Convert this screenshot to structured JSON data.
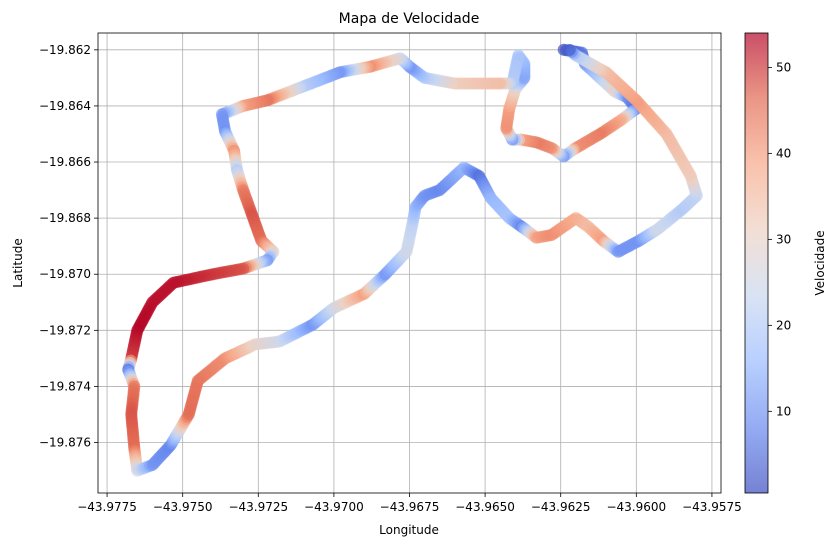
{
  "chart_data": {
    "type": "scatter",
    "title": "Mapa de Velocidade",
    "xlabel": "Longitude",
    "ylabel": "Latitude",
    "xlim": [
      -43.9778,
      -43.9572
    ],
    "ylim": [
      -19.8778,
      -19.8614
    ],
    "grid": true,
    "x_ticks": [
      -43.9775,
      -43.975,
      -43.9725,
      -43.97,
      -43.9675,
      -43.965,
      -43.9625,
      -43.96,
      -43.9575
    ],
    "x_tick_labels": [
      "−43.9775",
      "−43.9750",
      "−43.9725",
      "−43.9700",
      "−43.9675",
      "−43.9650",
      "−43.9625",
      "−43.9600",
      "−43.9575"
    ],
    "y_ticks": [
      -19.862,
      -19.864,
      -19.866,
      -19.868,
      -19.87,
      -19.872,
      -19.874,
      -19.876
    ],
    "y_tick_labels": [
      "−19.862",
      "−19.864",
      "−19.866",
      "−19.868",
      "−19.870",
      "−19.872",
      "−19.874",
      "−19.876"
    ],
    "colorbar": {
      "label": "Velocidade",
      "range": [
        0.5,
        54
      ],
      "ticks": [
        10,
        20,
        30,
        40,
        50
      ],
      "tick_labels": [
        "10",
        "20",
        "30",
        "40",
        "50"
      ],
      "colormap": "coolwarm",
      "colormap_stops": [
        "#3b4cc0",
        "#6788ee",
        "#9abbff",
        "#c9d7f0",
        "#edd1c2",
        "#f7a889",
        "#e26952",
        "#b40426"
      ]
    },
    "route": [
      [
        -43.9624,
        -19.862,
        1
      ],
      [
        -43.9618,
        -19.8621,
        5
      ],
      [
        -43.9617,
        -19.8625,
        10
      ],
      [
        -43.9612,
        -19.863,
        20
      ],
      [
        -43.9607,
        -19.8635,
        30
      ],
      [
        -43.9603,
        -19.8637,
        10
      ],
      [
        -43.96,
        -19.8641,
        5
      ],
      [
        -43.9605,
        -19.8645,
        38
      ],
      [
        -43.9612,
        -19.865,
        44
      ],
      [
        -43.962,
        -19.8655,
        42
      ],
      [
        -43.9624,
        -19.8658,
        10
      ],
      [
        -43.9628,
        -19.8655,
        42
      ],
      [
        -43.9633,
        -19.8653,
        44
      ],
      [
        -43.9638,
        -19.8652,
        40
      ],
      [
        -43.9641,
        -19.8652,
        10
      ],
      [
        -43.9643,
        -19.8648,
        42
      ],
      [
        -43.9642,
        -19.8641,
        40
      ],
      [
        -43.964,
        -19.8634,
        30
      ],
      [
        -43.9637,
        -19.863,
        12
      ],
      [
        -43.9637,
        -19.8625,
        15
      ],
      [
        -43.9639,
        -19.8622,
        18
      ],
      [
        -43.9641,
        -19.8632,
        20
      ],
      [
        -43.9645,
        -19.8632,
        35
      ],
      [
        -43.966,
        -19.8632,
        32
      ],
      [
        -43.967,
        -19.863,
        20
      ],
      [
        -43.9675,
        -19.8626,
        10
      ],
      [
        -43.9678,
        -19.8623,
        25
      ],
      [
        -43.9688,
        -19.8626,
        42
      ],
      [
        -43.9698,
        -19.8628,
        10
      ],
      [
        -43.971,
        -19.8633,
        20
      ],
      [
        -43.9722,
        -19.8638,
        45
      ],
      [
        -43.973,
        -19.864,
        40
      ],
      [
        -43.9737,
        -19.8643,
        10
      ],
      [
        -43.9736,
        -19.8649,
        10
      ],
      [
        -43.9733,
        -19.8656,
        42
      ],
      [
        -43.9732,
        -19.8663,
        20
      ],
      [
        -43.973,
        -19.867,
        44
      ],
      [
        -43.9727,
        -19.8679,
        48
      ],
      [
        -43.9724,
        -19.8688,
        46
      ],
      [
        -43.972,
        -19.8692,
        30
      ],
      [
        -43.9722,
        -19.8695,
        10
      ],
      [
        -43.973,
        -19.8698,
        48
      ],
      [
        -43.974,
        -19.87,
        50
      ],
      [
        -43.9753,
        -19.8703,
        53
      ],
      [
        -43.976,
        -19.871,
        53
      ],
      [
        -43.9765,
        -19.872,
        54
      ],
      [
        -43.9767,
        -19.873,
        50
      ],
      [
        -43.9768,
        -19.8734,
        5
      ],
      [
        -43.9766,
        -19.874,
        45
      ],
      [
        -43.9767,
        -19.875,
        48
      ],
      [
        -43.9766,
        -19.8762,
        46
      ],
      [
        -43.9765,
        -19.877,
        25
      ],
      [
        -43.976,
        -19.8768,
        10
      ],
      [
        -43.9754,
        -19.8761,
        8
      ],
      [
        -43.9748,
        -19.875,
        46
      ],
      [
        -43.9745,
        -19.8738,
        45
      ],
      [
        -43.9736,
        -19.873,
        42
      ],
      [
        -43.9726,
        -19.8725,
        30
      ],
      [
        -43.9718,
        -19.8724,
        25
      ],
      [
        -43.9707,
        -19.8718,
        10
      ],
      [
        -43.97,
        -19.8712,
        25
      ],
      [
        -43.969,
        -19.8707,
        40
      ],
      [
        -43.9683,
        -19.87,
        10
      ],
      [
        -43.9676,
        -19.8692,
        25
      ],
      [
        -43.9674,
        -19.8682,
        22
      ],
      [
        -43.9673,
        -19.8676,
        15
      ],
      [
        -43.967,
        -19.8672,
        10
      ],
      [
        -43.9665,
        -19.867,
        8
      ],
      [
        -43.9657,
        -19.8662,
        15
      ],
      [
        -43.9652,
        -19.8665,
        5
      ],
      [
        -43.9648,
        -19.8673,
        15
      ],
      [
        -43.9642,
        -19.868,
        18
      ],
      [
        -43.9638,
        -19.8683,
        8
      ],
      [
        -43.9633,
        -19.8687,
        40
      ],
      [
        -43.9628,
        -19.8686,
        42
      ],
      [
        -43.962,
        -19.868,
        38
      ],
      [
        -43.9616,
        -19.8683,
        35
      ],
      [
        -43.9611,
        -19.8688,
        40
      ],
      [
        -43.9606,
        -19.8692,
        10
      ],
      [
        -43.9599,
        -19.8688,
        10
      ],
      [
        -43.9593,
        -19.8684,
        25
      ],
      [
        -43.9585,
        -19.8677,
        20
      ],
      [
        -43.958,
        -19.8672,
        22
      ],
      [
        -43.9582,
        -19.8665,
        32
      ],
      [
        -43.959,
        -19.865,
        35
      ],
      [
        -43.96,
        -19.8638,
        40
      ],
      [
        -43.961,
        -19.8628,
        35
      ],
      [
        -43.962,
        -19.8622,
        20
      ],
      [
        -43.9622,
        -19.862,
        3
      ]
    ]
  }
}
